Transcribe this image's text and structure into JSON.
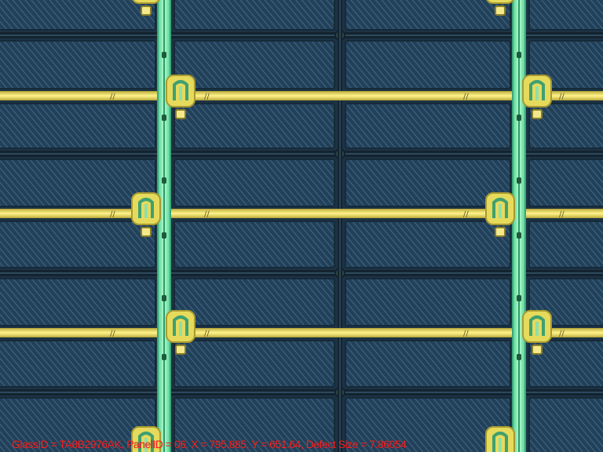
{
  "viewer": {
    "caption": "GlassID = TA8B2976AK, PanelID = 06, X = 795.885, Y = 651.64, Defect Size = 7.86054"
  },
  "colors": {
    "background": "#1c3346",
    "pixel_fill": "#23405a",
    "pixel_hatch": "#3f6a82",
    "data_line": "#8ff0b0",
    "data_line_core": "#4fd88e",
    "gate_line": "#eee46a",
    "gate_line_edge": "#b9a83a",
    "tft_fill": "#e6da5c",
    "tft_core": "#3fa070",
    "dark_line": "#14232f",
    "caption_text": "#ff2020"
  },
  "icons": {
    "tft": "thin-film-transistor",
    "via": "contact-via"
  }
}
